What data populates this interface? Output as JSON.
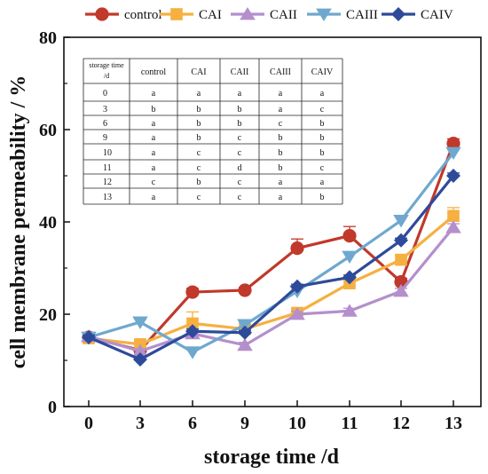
{
  "chart_data": {
    "type": "line",
    "xlabel": "storage time /d",
    "ylabel": "cell membrane permeability / %",
    "categories": [
      "0",
      "3",
      "6",
      "9",
      "10",
      "11",
      "12",
      "13"
    ],
    "ylim": [
      0,
      80
    ],
    "yticks": [
      0,
      20,
      40,
      60,
      80
    ],
    "legend_position": "top",
    "series": [
      {
        "name": "control",
        "color": "#c0392b",
        "marker": "circle",
        "values": [
          15.0,
          12.2,
          24.8,
          25.2,
          34.3,
          37.0,
          27.0,
          57.0
        ],
        "errors": [
          0.6,
          0.5,
          0.8,
          0.6,
          2.0,
          2.0,
          0.8,
          1.0
        ]
      },
      {
        "name": "CAI",
        "color": "#f5b041",
        "marker": "square",
        "values": [
          14.8,
          13.5,
          18.0,
          16.8,
          20.3,
          26.7,
          31.8,
          41.3
        ],
        "errors": [
          0.8,
          0.7,
          2.5,
          1.0,
          0.8,
          1.0,
          1.0,
          1.8
        ]
      },
      {
        "name": "CAII",
        "color": "#b48fcc",
        "marker": "triangle-up",
        "values": [
          15.2,
          12.0,
          15.8,
          13.3,
          20.0,
          20.7,
          25.0,
          38.8
        ],
        "errors": [
          0.5,
          0.5,
          0.6,
          0.6,
          0.6,
          0.6,
          0.6,
          0.8
        ]
      },
      {
        "name": "CAIII",
        "color": "#6ea8cf",
        "marker": "triangle-down",
        "values": [
          15.0,
          18.3,
          11.8,
          17.7,
          25.0,
          32.5,
          40.3,
          55.0
        ],
        "errors": [
          0.5,
          0.6,
          0.5,
          0.6,
          0.6,
          0.8,
          0.8,
          1.0
        ]
      },
      {
        "name": "CAIV",
        "color": "#2e4a9a",
        "marker": "diamond",
        "values": [
          15.0,
          10.2,
          16.3,
          16.0,
          26.0,
          28.0,
          36.0,
          50.0
        ],
        "errors": [
          0.5,
          0.5,
          0.5,
          0.5,
          0.5,
          0.5,
          0.5,
          0.6
        ]
      }
    ],
    "inset_table": {
      "header_line1": "storage time",
      "header_line2": "/d",
      "columns": [
        "control",
        "CAI",
        "CAII",
        "CAIII",
        "CAIV"
      ],
      "rows": [
        [
          "0",
          "a",
          "a",
          "a",
          "a",
          "a"
        ],
        [
          "3",
          "b",
          "b",
          "b",
          "a",
          "c"
        ],
        [
          "6",
          "a",
          "b",
          "b",
          "c",
          "b"
        ],
        [
          "9",
          "a",
          "b",
          "c",
          "b",
          "b"
        ],
        [
          "10",
          "a",
          "c",
          "c",
          "b",
          "b"
        ],
        [
          "11",
          "a",
          "c",
          "d",
          "b",
          "c"
        ],
        [
          "12",
          "c",
          "b",
          "c",
          "a",
          "a"
        ],
        [
          "13",
          "a",
          "c",
          "c",
          "a",
          "b"
        ]
      ]
    }
  }
}
